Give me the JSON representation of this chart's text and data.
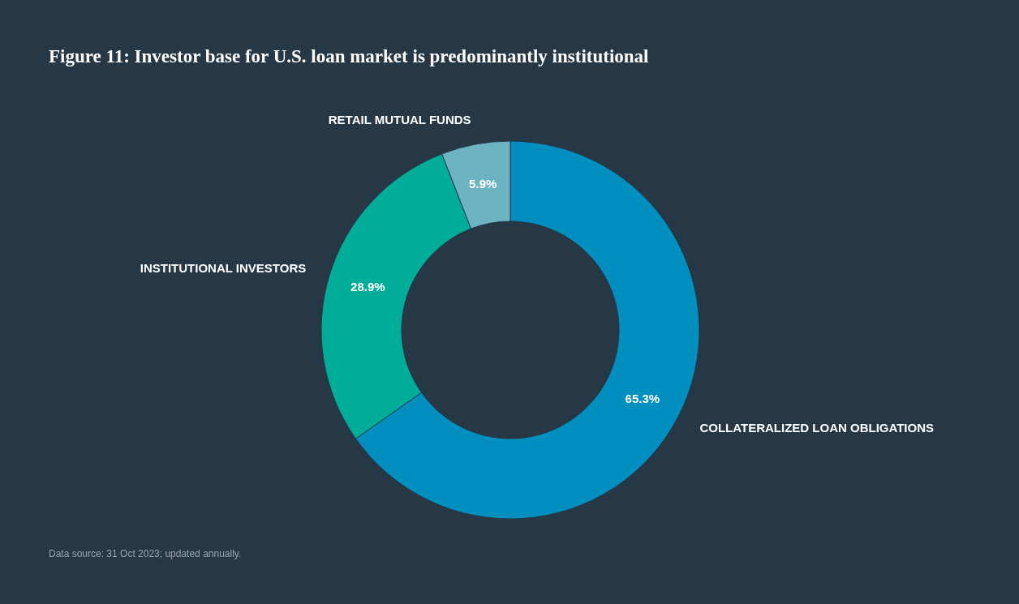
{
  "chart_data": {
    "type": "donut",
    "title": "Figure 11: Investor base for U.S. loan market is predominantly institutional",
    "categories": [
      "COLLATERALIZED LOAN OBLIGATIONS",
      "INSTITUTIONAL INVESTORS",
      "RETAIL MUTUAL FUNDS"
    ],
    "values": [
      65.3,
      28.9,
      5.9
    ],
    "colors": [
      "#008fbf",
      "#00ad98",
      "#6db3c2"
    ],
    "value_labels": [
      "65.3%",
      "28.9%",
      "5.9%"
    ],
    "annotations": [
      "Data source: 31 Oct 2023; updated annually."
    ]
  }
}
